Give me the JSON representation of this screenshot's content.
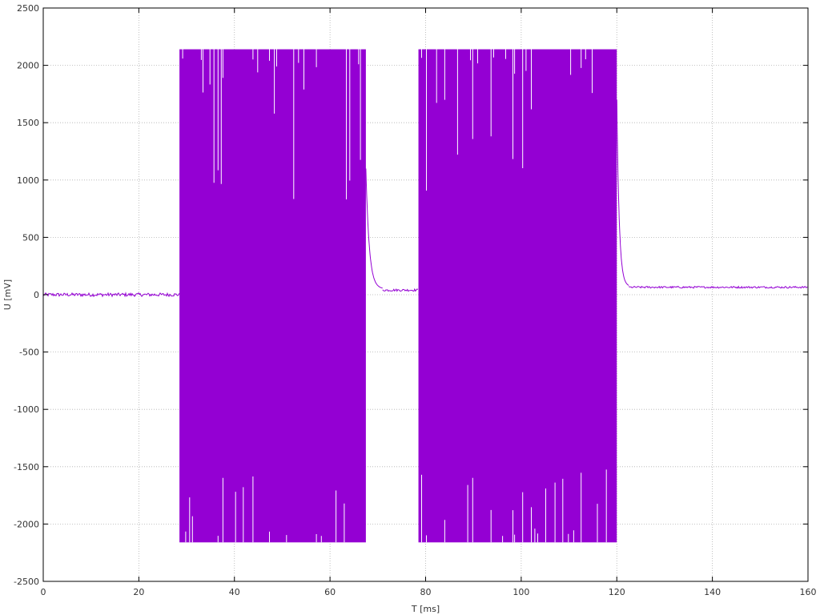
{
  "chart_data": {
    "type": "line",
    "title": "",
    "xlabel": "T [ms]",
    "ylabel": "U [mV]",
    "xlim": [
      0,
      160
    ],
    "ylim": [
      -2500,
      2500
    ],
    "x_ticks": [
      0,
      20,
      40,
      60,
      80,
      100,
      120,
      140,
      160
    ],
    "y_ticks": [
      -2500,
      -2000,
      -1500,
      -1000,
      -500,
      0,
      500,
      1000,
      1500,
      2000,
      2500
    ],
    "grid": true,
    "legend": "none",
    "series": [
      {
        "color": "#9400d3",
        "clip_level_mV": [
          -2160,
          2140
        ],
        "segments": [
          {
            "kind": "noise",
            "t_start": 0,
            "t_end": 28.5,
            "mean": 0,
            "amplitude": 15
          },
          {
            "kind": "burst",
            "t_start": 28.5,
            "t_end": 67.5,
            "min": -2160,
            "max": 2140
          },
          {
            "kind": "decay",
            "t_start": 67.5,
            "t_end": 71,
            "from": 1100,
            "to": 50
          },
          {
            "kind": "noise",
            "t_start": 71,
            "t_end": 78.5,
            "mean": 40,
            "amplitude": 10
          },
          {
            "kind": "burst",
            "t_start": 78.5,
            "t_end": 120,
            "min": -2160,
            "max": 2140
          },
          {
            "kind": "decay",
            "t_start": 120,
            "t_end": 122.5,
            "from": 1700,
            "to": 70
          },
          {
            "kind": "noise",
            "t_start": 122.5,
            "t_end": 160,
            "mean": 65,
            "amplitude": 8
          }
        ]
      }
    ]
  }
}
